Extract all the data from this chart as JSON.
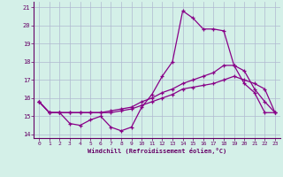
{
  "xlabel": "Windchill (Refroidissement éolien,°C)",
  "background_color": "#d4f0e8",
  "grid_color": "#b0b8d0",
  "line_color": "#880088",
  "xlim": [
    -0.5,
    23.5
  ],
  "ylim": [
    13.8,
    21.3
  ],
  "xticks": [
    0,
    1,
    2,
    3,
    4,
    5,
    6,
    7,
    8,
    9,
    10,
    11,
    12,
    13,
    14,
    15,
    16,
    17,
    18,
    19,
    20,
    21,
    22,
    23
  ],
  "yticks": [
    14,
    15,
    16,
    17,
    18,
    19,
    20,
    21
  ],
  "series": [
    [
      15.8,
      15.2,
      15.2,
      14.6,
      14.5,
      14.8,
      15.0,
      14.4,
      14.2,
      14.4,
      15.5,
      16.2,
      17.2,
      18.0,
      20.8,
      20.4,
      19.8,
      19.8,
      19.7,
      17.8,
      16.8,
      16.3,
      15.2,
      15.2
    ],
    [
      15.8,
      15.2,
      15.2,
      15.2,
      15.2,
      15.2,
      15.2,
      15.3,
      15.4,
      15.5,
      15.8,
      16.0,
      16.3,
      16.5,
      16.8,
      17.0,
      17.2,
      17.4,
      17.8,
      17.8,
      17.5,
      16.5,
      15.8,
      15.2
    ],
    [
      15.8,
      15.2,
      15.2,
      15.2,
      15.2,
      15.2,
      15.2,
      15.2,
      15.3,
      15.4,
      15.6,
      15.8,
      16.0,
      16.2,
      16.5,
      16.6,
      16.7,
      16.8,
      17.0,
      17.2,
      17.0,
      16.8,
      16.5,
      15.2
    ]
  ]
}
